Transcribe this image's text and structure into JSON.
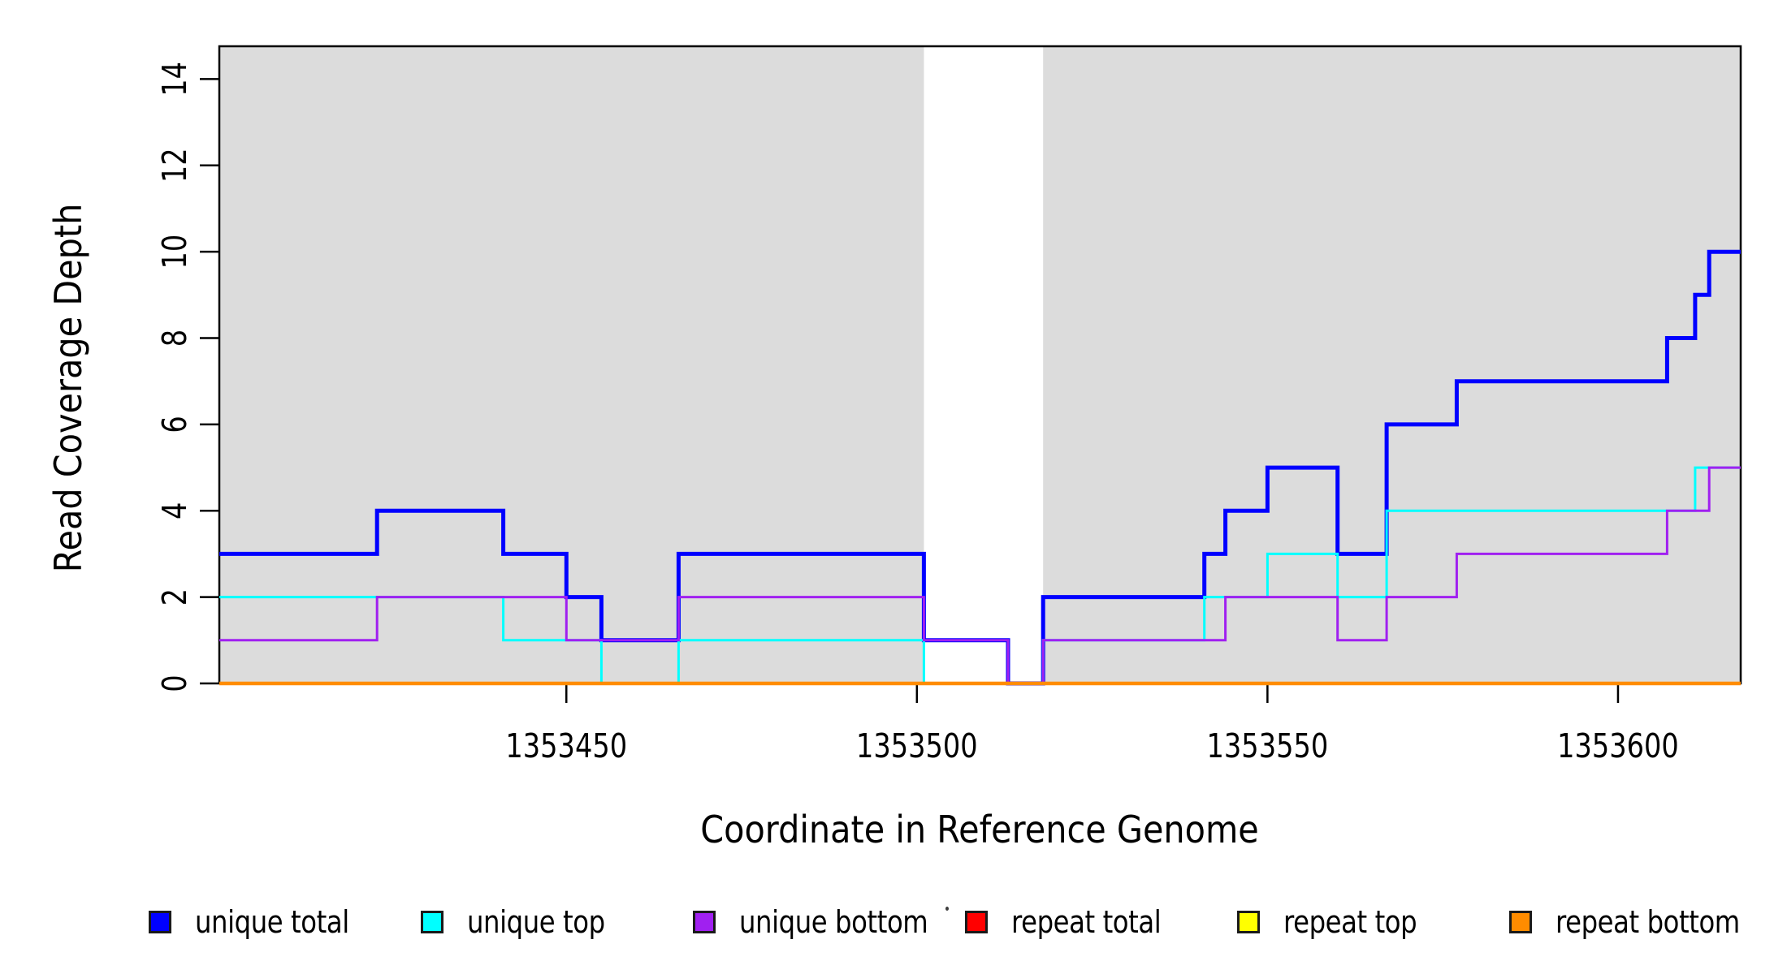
{
  "figure": {
    "background": "#ffffff",
    "axis_color": "#000000",
    "plot_background_band_color": "#dcdcdc"
  },
  "chart_data": {
    "type": "line",
    "subtype": "step-coverage",
    "title": "",
    "xlabel": "Coordinate in Reference Genome",
    "ylabel": "Read Coverage Depth",
    "xlim": [
      1353400.5,
      1353617.5
    ],
    "ylim": [
      0,
      14.76
    ],
    "x_ticks": [
      1353450,
      1353500,
      1353550,
      1353600
    ],
    "y_ticks": [
      0,
      2,
      4,
      6,
      8,
      10,
      12,
      14
    ],
    "grid": false,
    "legend_position": "bottom",
    "shaded_regions": [
      {
        "x0": 1353400.5,
        "x1": 1353501,
        "color": "#dcdcdc"
      },
      {
        "x0": 1353518,
        "x1": 1353617.5,
        "color": "#dcdcdc"
      }
    ],
    "series": [
      {
        "name": "unique total",
        "color": "#0000ff",
        "line_width": 5,
        "steps": [
          [
            1353400.5,
            3
          ],
          [
            1353423,
            4
          ],
          [
            1353441,
            3
          ],
          [
            1353450,
            2
          ],
          [
            1353455,
            1
          ],
          [
            1353466,
            3
          ],
          [
            1353501,
            1
          ],
          [
            1353513,
            0
          ],
          [
            1353518,
            2
          ],
          [
            1353541,
            3
          ],
          [
            1353544,
            4
          ],
          [
            1353550,
            5
          ],
          [
            1353560,
            3
          ],
          [
            1353567,
            6
          ],
          [
            1353577,
            7
          ],
          [
            1353607,
            8
          ],
          [
            1353611,
            9
          ],
          [
            1353613,
            10
          ],
          [
            1353617.5,
            10
          ]
        ]
      },
      {
        "name": "unique top",
        "color": "#00ffff",
        "line_width": 3,
        "steps": [
          [
            1353400.5,
            2
          ],
          [
            1353441,
            1
          ],
          [
            1353455,
            0
          ],
          [
            1353466,
            1
          ],
          [
            1353501,
            0
          ],
          [
            1353518,
            1
          ],
          [
            1353541,
            2
          ],
          [
            1353550,
            3
          ],
          [
            1353560,
            2
          ],
          [
            1353567,
            4
          ],
          [
            1353611,
            5
          ],
          [
            1353617.5,
            5
          ]
        ]
      },
      {
        "name": "unique bottom",
        "color": "#a020f0",
        "line_width": 3,
        "steps": [
          [
            1353400.5,
            1
          ],
          [
            1353423,
            2
          ],
          [
            1353450,
            1
          ],
          [
            1353466,
            2
          ],
          [
            1353501,
            1
          ],
          [
            1353513,
            0
          ],
          [
            1353518,
            1
          ],
          [
            1353544,
            2
          ],
          [
            1353560,
            1
          ],
          [
            1353567,
            2
          ],
          [
            1353577,
            3
          ],
          [
            1353607,
            4
          ],
          [
            1353613,
            5
          ],
          [
            1353617.5,
            5
          ]
        ]
      },
      {
        "name": "repeat total",
        "color": "#ff0000",
        "line_width": 3,
        "steps": [
          [
            1353400.5,
            0
          ],
          [
            1353617.5,
            0
          ]
        ]
      },
      {
        "name": "repeat top",
        "color": "#ffff00",
        "line_width": 3,
        "steps": [
          [
            1353400.5,
            0
          ],
          [
            1353617.5,
            0
          ]
        ]
      },
      {
        "name": "repeat bottom",
        "color": "#ff8c00",
        "line_width": 4.5,
        "steps": [
          [
            1353400.5,
            0
          ],
          [
            1353617.5,
            0
          ]
        ]
      }
    ]
  },
  "legend": {
    "items": [
      {
        "label": "unique total",
        "color": "#0000ff"
      },
      {
        "label": "unique top",
        "color": "#00ffff"
      },
      {
        "label": "unique bottom",
        "color": "#a020f0"
      },
      {
        "label": "repeat total",
        "color": "#ff0000"
      },
      {
        "label": "repeat top",
        "color": "#ffff00"
      },
      {
        "label": "repeat bottom",
        "color": "#ff8c00"
      }
    ]
  }
}
